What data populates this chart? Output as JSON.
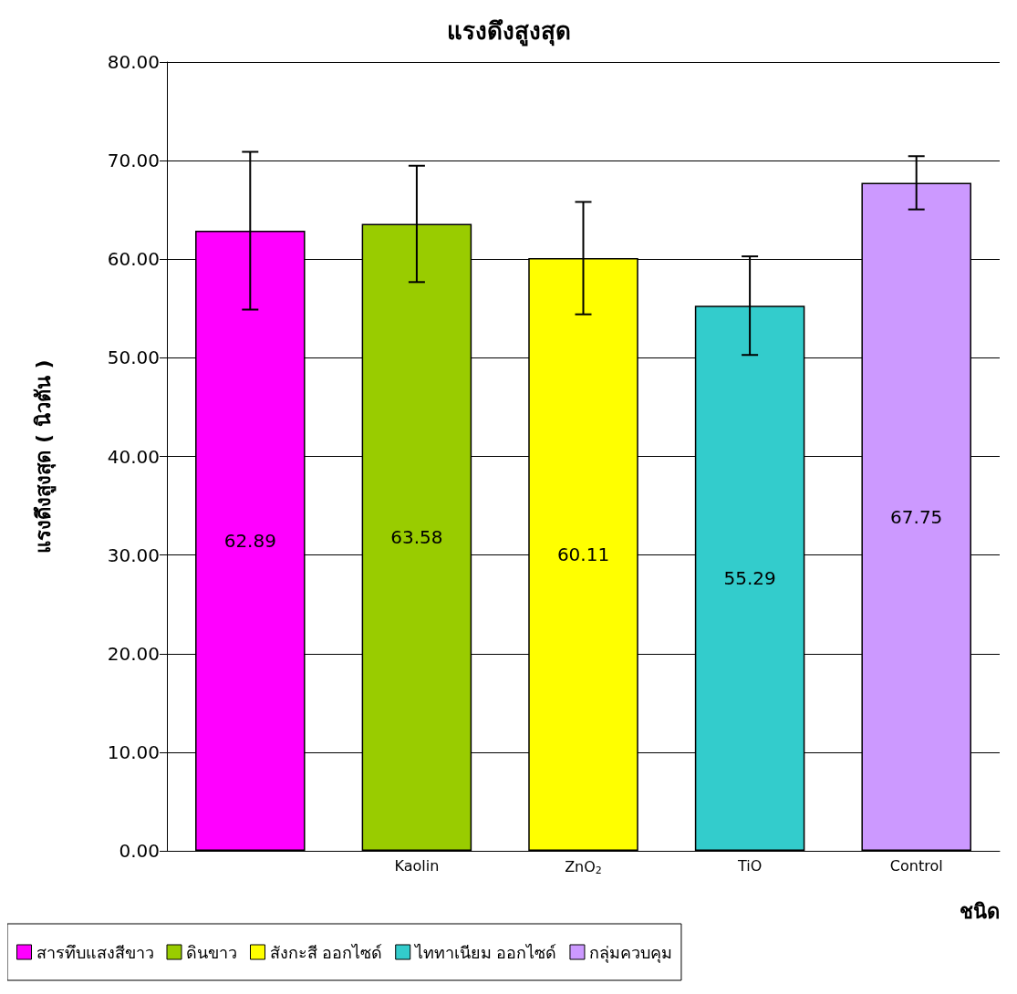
{
  "chart_data": {
    "type": "bar",
    "title": "แรงดึงสูงสุด",
    "xlabel": "ชนิด",
    "ylabel": "แรงดึงสูงสุด ( นิวตัน )",
    "categories": [
      null,
      "Kaolin",
      "ZnO$_{2}$",
      "TiO",
      "Control"
    ],
    "stacked": true,
    "series": [
      {
        "name": "สารทึบแสงสีขาว",
        "color": "#ff00ff",
        "values": [
          62.89,
          null,
          null,
          null,
          null
        ],
        "errors": [
          8.0,
          null,
          null,
          null,
          null
        ]
      },
      {
        "name": "ดินขาว",
        "color": "#99cc00",
        "values": [
          null,
          63.58,
          null,
          null,
          null
        ],
        "errors": [
          null,
          5.9,
          null,
          null,
          null
        ]
      },
      {
        "name": "สังกะสี ออกไซด์",
        "color": "#ffff00",
        "values": [
          null,
          null,
          60.11,
          null,
          null
        ],
        "errors": [
          null,
          null,
          5.7,
          null,
          null
        ]
      },
      {
        "name": "ไททาเนียม ออกไซด์",
        "color": "#33cccc",
        "values": [
          null,
          null,
          null,
          55.29,
          null
        ],
        "errors": [
          null,
          null,
          null,
          5.0,
          null
        ]
      },
      {
        "name": "กลุ่มควบคุม",
        "color": "#cc99ff",
        "values": [
          null,
          null,
          null,
          null,
          67.75
        ],
        "errors": [
          null,
          null,
          null,
          null,
          2.7
        ]
      }
    ],
    "ylim": [
      0,
      80
    ],
    "yticks": [
      {
        "value": 0,
        "label": "0.00"
      },
      {
        "value": 10,
        "label": "10.00"
      },
      {
        "value": 20,
        "label": "20.00"
      },
      {
        "value": 30,
        "label": "30.00"
      },
      {
        "value": 40,
        "label": "40.00"
      },
      {
        "value": 50,
        "label": "50.00"
      },
      {
        "value": 60,
        "label": "60.00"
      },
      {
        "value": 70,
        "label": "70.00"
      },
      {
        "value": 80,
        "label": "80.00"
      }
    ],
    "grid": "y",
    "legend": "bottom",
    "data_labels": true
  }
}
